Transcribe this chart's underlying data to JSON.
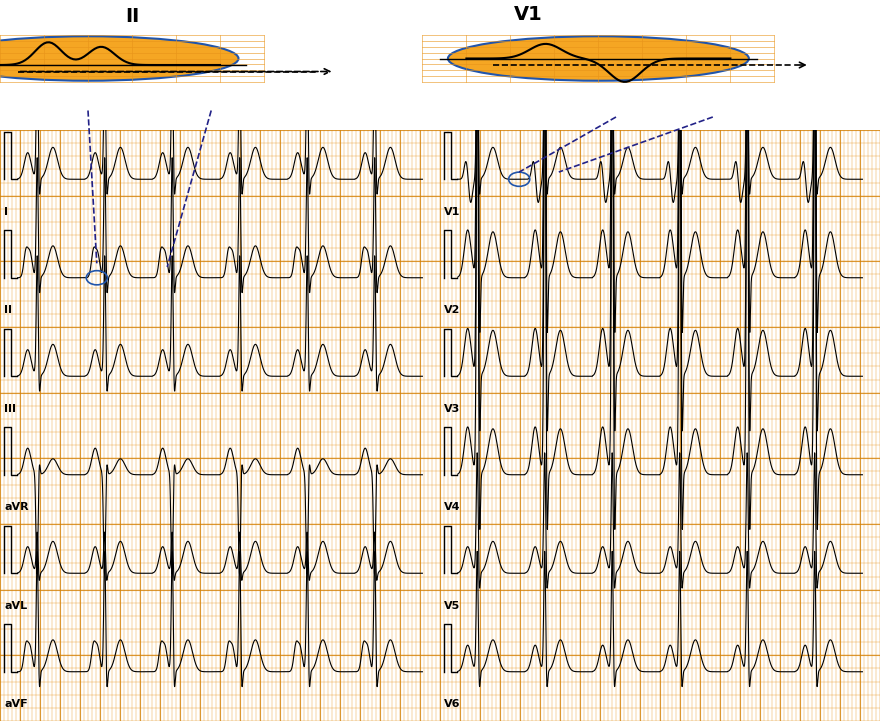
{
  "bg_color": "#F5A623",
  "ecg_color": "#000000",
  "grid_minor_color": "#E8941A",
  "grid_major_color": "#D4820A",
  "white_bg": "#FFFFFF",
  "circle_color": "#2255AA",
  "dashed_color": "#222288",
  "lead_labels": [
    "I",
    "II",
    "III",
    "aVR",
    "aVL",
    "aVF",
    "V1",
    "V2",
    "V3",
    "V4",
    "V5",
    "V6"
  ],
  "inset_label_II": "II",
  "inset_label_V1": "V1"
}
